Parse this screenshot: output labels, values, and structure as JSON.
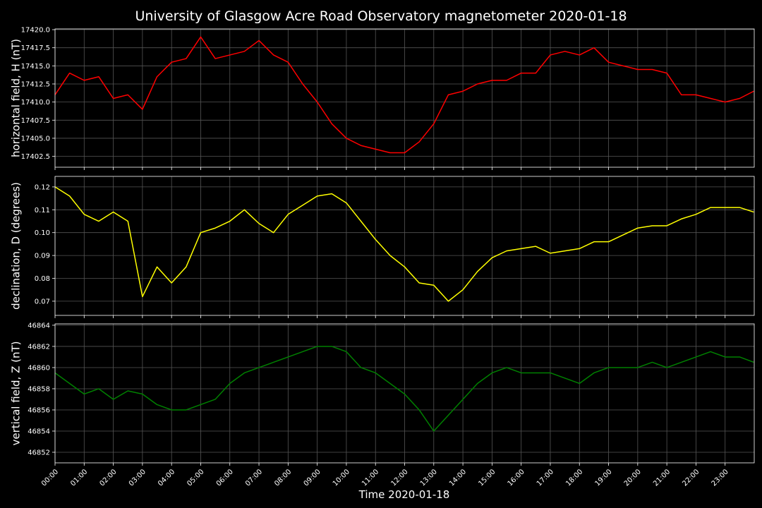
{
  "title": "University of Glasgow Acre Road Observatory magnetometer 2020-01-18",
  "xlabel": "Time 2020-01-18",
  "x": [
    "00:00",
    "00:30",
    "01:00",
    "01:30",
    "02:00",
    "02:30",
    "03:00",
    "03:30",
    "04:00",
    "04:30",
    "05:00",
    "05:30",
    "06:00",
    "06:30",
    "07:00",
    "07:30",
    "08:00",
    "08:30",
    "09:00",
    "09:30",
    "10:00",
    "10:30",
    "11:00",
    "11:30",
    "12:00",
    "12:30",
    "13:00",
    "13:30",
    "14:00",
    "14:30",
    "15:00",
    "15:30",
    "16:00",
    "16:30",
    "17:00",
    "17:30",
    "18:00",
    "18:30",
    "19:00",
    "19:30",
    "20:00",
    "20:30",
    "21:00",
    "21:30",
    "22:00",
    "22:30",
    "23:00",
    "23:30",
    "23:59"
  ],
  "xlim": [
    "00:00",
    "24:00"
  ],
  "xticks": [
    "00:00",
    "01:00",
    "02:00",
    "03:00",
    "04:00",
    "05:00",
    "06:00",
    "07:00",
    "08:00",
    "09:00",
    "10:00",
    "11:00",
    "12:00",
    "13:00",
    "14:00",
    "15:00",
    "16:00",
    "17:00",
    "18:00",
    "19:00",
    "20:00",
    "21:00",
    "22:00",
    "23:00"
  ],
  "grid": true,
  "chart_data": [
    {
      "type": "line",
      "ylabel": "horizontal field, H (nT)",
      "color": "#ff0000",
      "values": [
        17411,
        17414,
        17413,
        17413.5,
        17410.5,
        17411,
        17409,
        17413.5,
        17415.5,
        17416,
        17419,
        17416,
        17416.5,
        17417,
        17418.5,
        17416.5,
        17415.5,
        17412.5,
        17410,
        17407,
        17405,
        17404,
        17403.5,
        17403,
        17403,
        17404.5,
        17407,
        17411,
        17411.5,
        17412.5,
        17413,
        17413,
        17414,
        17414,
        17416.5,
        17417,
        17416.5,
        17417.5,
        17415.5,
        17415,
        17414.5,
        17414.5,
        17414,
        17411,
        17411,
        17410.5,
        17410,
        17410.5,
        17411.5
      ],
      "ylim": [
        17401.0,
        17420.1
      ],
      "yticks": [
        17402.5,
        {
          "value": 17405,
          "label": "17405.0"
        },
        17407.5,
        {
          "value": 17410,
          "label": "17410.0"
        },
        17412.5,
        {
          "value": 17415,
          "label": "17415.0"
        },
        17417.5,
        {
          "value": 17420,
          "label": "17420.0"
        }
      ]
    },
    {
      "type": "line",
      "ylabel": "declination, D (degrees)",
      "color": "#ffff00",
      "values": [
        0.12,
        0.116,
        0.108,
        0.105,
        0.109,
        0.105,
        0.072,
        0.085,
        0.078,
        0.085,
        0.1,
        0.102,
        0.105,
        0.11,
        0.104,
        0.1,
        0.108,
        0.112,
        0.116,
        0.117,
        0.113,
        0.105,
        0.097,
        0.09,
        0.085,
        0.078,
        0.077,
        0.07,
        0.075,
        0.083,
        0.089,
        0.092,
        0.093,
        0.094,
        0.091,
        0.092,
        0.093,
        0.096,
        0.096,
        0.099,
        0.102,
        0.103,
        0.103,
        0.106,
        0.108,
        0.111,
        0.111,
        0.111,
        0.109
      ],
      "ylim": [
        0.0638,
        0.1246
      ],
      "yticks": [
        0.07,
        0.08,
        0.09,
        {
          "value": 0.1,
          "label": "0.10"
        },
        0.11,
        0.12
      ]
    },
    {
      "type": "line",
      "ylabel": "vertical field, Z (nT)",
      "color": "#008000",
      "values": [
        46859.5,
        46858.5,
        46857.5,
        46858,
        46857,
        46857.8,
        46857.5,
        46856.5,
        46856,
        46856,
        46856.5,
        46857,
        46858.5,
        46859.5,
        46860,
        46860.5,
        46861,
        46861.5,
        46862,
        46862,
        46861.5,
        46860,
        46859.5,
        46858.5,
        46857.5,
        46856,
        46854,
        46855.5,
        46857,
        46858.5,
        46859.5,
        46860,
        46859.5,
        46859.5,
        46859.5,
        46859,
        46858.5,
        46859.5,
        46860,
        46860,
        46860,
        46860.5,
        46860,
        46860.5,
        46861,
        46861.5,
        46861,
        46861,
        46860.5
      ],
      "ylim": [
        46851.0,
        46864.13
      ],
      "yticks": [
        46852,
        46854,
        46856,
        46858,
        46860,
        46862,
        46864
      ]
    }
  ]
}
